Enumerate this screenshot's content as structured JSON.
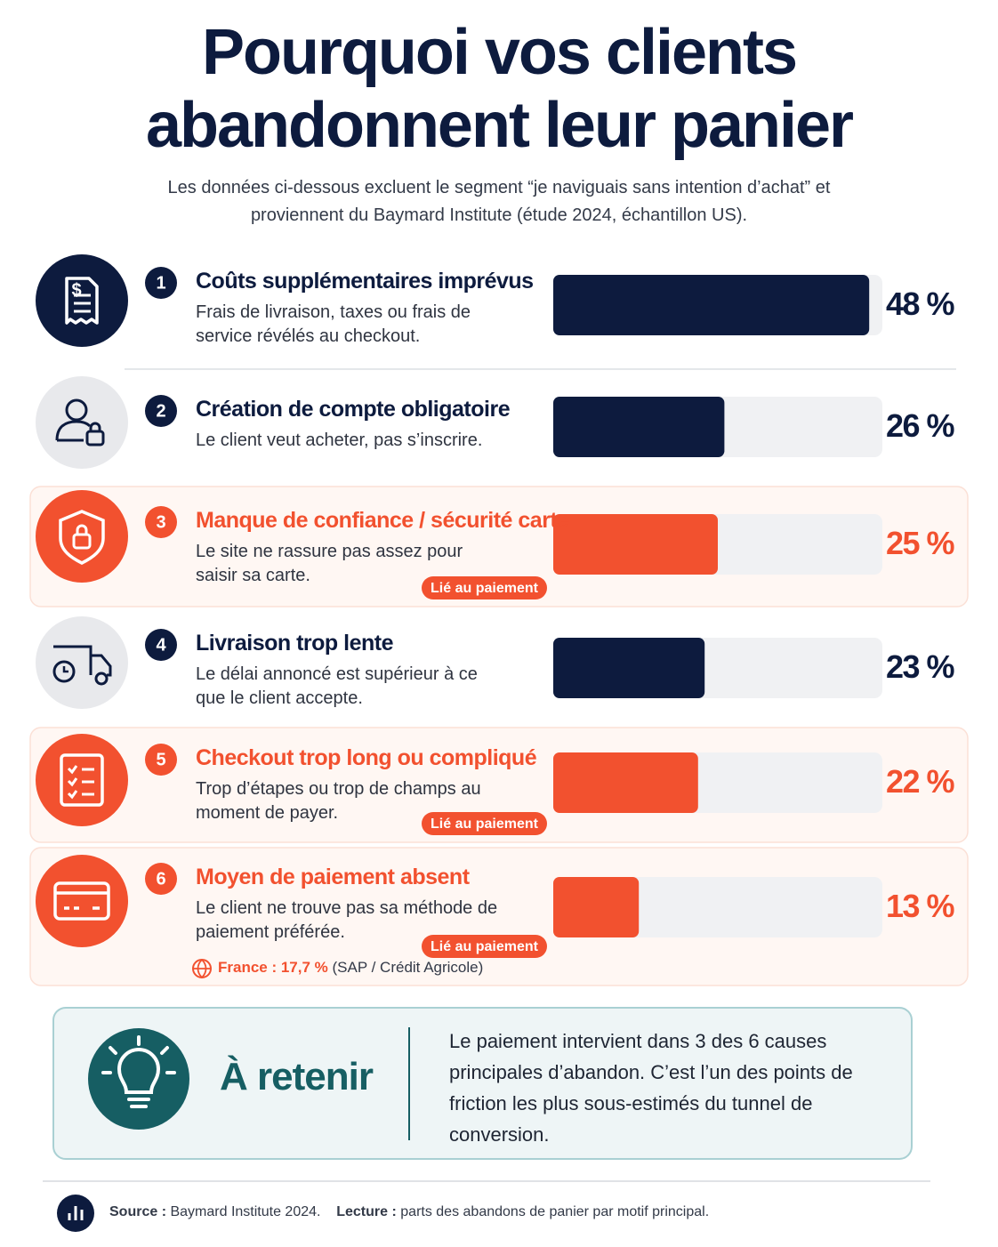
{
  "chart_data": {
    "type": "bar",
    "title": "Pourquoi vos clients abandonnent leur panier",
    "subtitle": "Les données ci-dessous excluent le segment “je naviguais sans intention d’achat” et proviennent du Baymard Institute (étude 2024, échantillon US).",
    "ranks": [
      1,
      2,
      3,
      4,
      5,
      6
    ],
    "categories": [
      "Coûts supplémentaires imprévus",
      "Création de compte obligatoire",
      "Manque de confiance / sécurité carte",
      "Livraison trop lente",
      "Checkout trop long ou compliqué",
      "Moyen de paiement absent"
    ],
    "descriptions": [
      "Frais de livraison, taxes ou frais de service révélés au checkout.",
      "Le client veut acheter, pas s’inscrire.",
      "Le site ne rassure pas assez pour saisir sa carte.",
      "Le délai annoncé est supérieur à ce que le client accepte.",
      "Trop d’étapes ou trop de champs au moment de payer.",
      "Le client ne trouve pas sa méthode de paiement préférée."
    ],
    "values": [
      48,
      26,
      25,
      23,
      22,
      13
    ],
    "value_labels": [
      "48 %",
      "26 %",
      "25 %",
      "23 %",
      "22 %",
      "13 %"
    ],
    "colors": [
      "#0d1b3e",
      "#0d1b3e",
      "#f2512f",
      "#0d1b3e",
      "#f2512f",
      "#f2512f"
    ],
    "tags": [
      null,
      null,
      "Lié au paiement",
      null,
      "Lié au paiement",
      "Lié au paiement"
    ],
    "xlim": [
      0,
      50
    ]
  },
  "note": {
    "label": "France : 17,7 %",
    "source": "(SAP / Crédit Agricole)"
  },
  "takeaway": {
    "title": "À retenir",
    "text": "Le paiement intervient dans 3 des 6 causes principales d’abandon. C’est l’un des points de friction les plus sous-estimés du tunnel de conversion."
  },
  "footer": {
    "source_label": "Source :",
    "source": "Baymard Institute 2024.",
    "reading_label": "Lecture :",
    "reading": "parts des abandons de panier par motif principal."
  }
}
